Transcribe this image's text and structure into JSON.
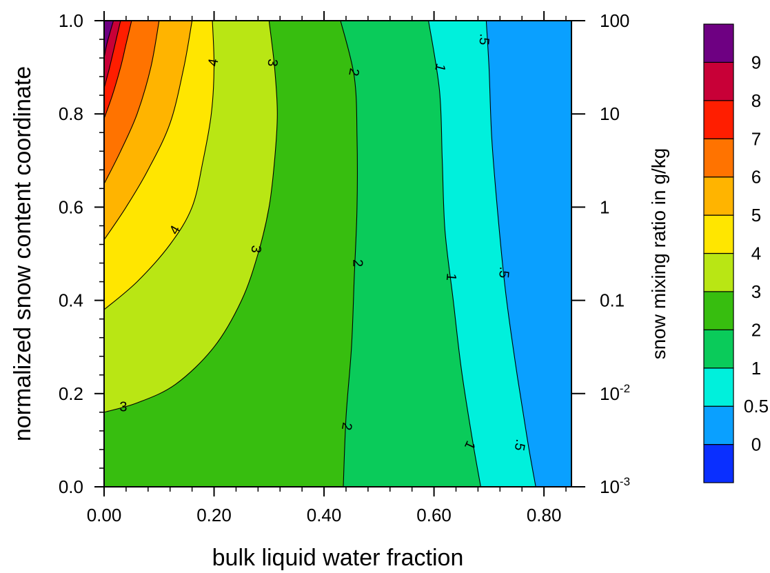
{
  "chart_data": {
    "type": "contour",
    "xlabel": "bulk liquid water fraction",
    "ylabel": "normalized snow content coordinate",
    "y2label": "snow mixing ratio in g/kg",
    "xlim": [
      0,
      0.85
    ],
    "ylim": [
      0,
      1.0
    ],
    "x_ticks": [
      0.0,
      0.2,
      0.4,
      0.6,
      0.8
    ],
    "x_tick_labels": [
      "0.00",
      "0.20",
      "0.40",
      "0.60",
      "0.80"
    ],
    "y_ticks": [
      0.0,
      0.2,
      0.4,
      0.6,
      0.8,
      1.0
    ],
    "y_tick_labels": [
      "0.0",
      "0.2",
      "0.4",
      "0.6",
      "0.8",
      "1.0"
    ],
    "y2_ticks": [
      {
        "y": 0.0,
        "base": "10",
        "exp": "-3"
      },
      {
        "y": 0.2,
        "base": "10",
        "exp": "-2"
      },
      {
        "y": 0.4,
        "base": "0.1",
        "exp": ""
      },
      {
        "y": 0.6,
        "base": "1",
        "exp": ""
      },
      {
        "y": 0.8,
        "base": "10",
        "exp": ""
      },
      {
        "y": 1.0,
        "base": "100",
        "exp": ""
      }
    ],
    "colorbar": {
      "colors": [
        "#0a2fff",
        "#0aa0ff",
        "#00f0dc",
        "#0acb5a",
        "#37be0f",
        "#b9e614",
        "#ffe600",
        "#ffb400",
        "#ff7300",
        "#ff1e00",
        "#c80037",
        "#6e0082"
      ],
      "labels": [
        "0",
        "0.5",
        "1",
        "2",
        "3",
        "4",
        "5",
        "6",
        "7",
        "8",
        "9"
      ]
    },
    "contours": [
      {
        "level": "9",
        "color": "#6e0082",
        "points": [
          [
            0.0,
            0.92
          ],
          [
            0.005,
            0.95
          ],
          [
            0.012,
            0.98
          ],
          [
            0.017,
            1.0
          ]
        ]
      },
      {
        "level": "8",
        "color": "#c80037",
        "points": [
          [
            0.0,
            0.855
          ],
          [
            0.01,
            0.9
          ],
          [
            0.02,
            0.95
          ],
          [
            0.03,
            1.0
          ]
        ]
      },
      {
        "level": "7",
        "color": "#ff1e00",
        "points": [
          [
            0.0,
            0.79
          ],
          [
            0.015,
            0.84
          ],
          [
            0.03,
            0.9
          ],
          [
            0.04,
            0.95
          ],
          [
            0.05,
            1.0
          ]
        ]
      },
      {
        "level": "6",
        "color": "#ff7300",
        "points": [
          [
            0.0,
            0.65
          ],
          [
            0.03,
            0.72
          ],
          [
            0.06,
            0.8
          ],
          [
            0.085,
            0.9
          ],
          [
            0.1,
            1.0
          ]
        ]
      },
      {
        "level": "5",
        "color": "#ffb400",
        "points": [
          [
            0.0,
            0.53
          ],
          [
            0.04,
            0.6
          ],
          [
            0.08,
            0.68
          ],
          [
            0.12,
            0.78
          ],
          [
            0.145,
            0.9
          ],
          [
            0.16,
            1.0
          ]
        ]
      },
      {
        "level": "4",
        "color": "#ffe600",
        "points": [
          [
            0.0,
            0.38
          ],
          [
            0.06,
            0.44
          ],
          [
            0.12,
            0.52
          ],
          [
            0.16,
            0.6
          ],
          [
            0.18,
            0.7
          ],
          [
            0.195,
            0.8
          ],
          [
            0.2,
            0.9
          ],
          [
            0.197,
            1.0
          ]
        ]
      },
      {
        "level": "3",
        "color": "#b9e614",
        "points": [
          [
            0.0,
            0.16
          ],
          [
            0.06,
            0.18
          ],
          [
            0.13,
            0.22
          ],
          [
            0.2,
            0.3
          ],
          [
            0.25,
            0.4
          ],
          [
            0.28,
            0.5
          ],
          [
            0.3,
            0.6
          ],
          [
            0.31,
            0.7
          ],
          [
            0.315,
            0.8
          ],
          [
            0.31,
            0.9
          ],
          [
            0.3,
            1.0
          ]
        ]
      },
      {
        "level": "2",
        "color": "#37be0f",
        "points": [
          [
            0.435,
            0.0
          ],
          [
            0.44,
            0.15
          ],
          [
            0.45,
            0.3
          ],
          [
            0.455,
            0.45
          ],
          [
            0.46,
            0.6
          ],
          [
            0.46,
            0.75
          ],
          [
            0.455,
            0.88
          ],
          [
            0.43,
            1.0
          ]
        ]
      },
      {
        "level": "1",
        "color": "#0acb5a",
        "points": [
          [
            0.685,
            0.0
          ],
          [
            0.67,
            0.1
          ],
          [
            0.65,
            0.25
          ],
          [
            0.635,
            0.4
          ],
          [
            0.62,
            0.55
          ],
          [
            0.615,
            0.7
          ],
          [
            0.61,
            0.85
          ],
          [
            0.59,
            1.0
          ]
        ]
      },
      {
        "level": ".5",
        "color": "#00f0dc",
        "points": [
          [
            0.785,
            0.0
          ],
          [
            0.77,
            0.1
          ],
          [
            0.75,
            0.25
          ],
          [
            0.73,
            0.42
          ],
          [
            0.715,
            0.6
          ],
          [
            0.705,
            0.75
          ],
          [
            0.7,
            0.9
          ],
          [
            0.695,
            1.0
          ]
        ]
      }
    ],
    "contour_labels": [
      {
        "text": "4",
        "x": 0.2,
        "y": 0.91,
        "angle": -80
      },
      {
        "text": "3",
        "x": 0.305,
        "y": 0.91,
        "angle": 95
      },
      {
        "text": "2",
        "x": 0.453,
        "y": 0.89,
        "angle": 100
      },
      {
        "text": "1",
        "x": 0.61,
        "y": 0.9,
        "angle": 105
      },
      {
        "text": ".5",
        "x": 0.69,
        "y": 0.96,
        "angle": 95
      },
      {
        "text": "4",
        "x": 0.13,
        "y": 0.55,
        "angle": -60
      },
      {
        "text": "3",
        "x": 0.275,
        "y": 0.51,
        "angle": 95
      },
      {
        "text": "2",
        "x": 0.46,
        "y": 0.48,
        "angle": 90
      },
      {
        "text": "1",
        "x": 0.63,
        "y": 0.45,
        "angle": 95
      },
      {
        "text": ".5",
        "x": 0.726,
        "y": 0.46,
        "angle": 95
      },
      {
        "text": "3",
        "x": 0.035,
        "y": 0.17,
        "angle": 0
      },
      {
        "text": "2",
        "x": 0.44,
        "y": 0.13,
        "angle": 100
      },
      {
        "text": "1",
        "x": 0.664,
        "y": 0.09,
        "angle": 115
      },
      {
        "text": ".5",
        "x": 0.755,
        "y": 0.09,
        "angle": 100
      }
    ]
  }
}
